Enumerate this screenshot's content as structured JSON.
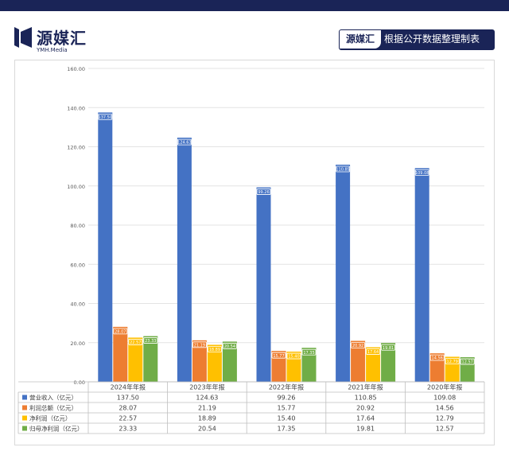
{
  "header": {
    "brand_name": "源媒汇",
    "brand_sub": "YMH.Media",
    "badge_brand": "源媒汇",
    "badge_text": "根据公开数据整理制表"
  },
  "colors": {
    "dark_navy": "#1a2457",
    "series": [
      "#4472c4",
      "#ed7d31",
      "#ffc000",
      "#70ad47"
    ]
  },
  "chart_data": {
    "type": "bar",
    "title": "",
    "xlabel": "",
    "ylabel": "",
    "ylim": [
      0,
      160
    ],
    "yticks": [
      "0.00",
      "20.00",
      "40.00",
      "60.00",
      "80.00",
      "100.00",
      "120.00",
      "140.00",
      "160.00"
    ],
    "categories": [
      "2024年年报",
      "2023年年报",
      "2022年年报",
      "2021年年报",
      "2020年年报"
    ],
    "series": [
      {
        "name": "营业收入（亿元）",
        "values": [
          137.5,
          124.63,
          99.26,
          110.85,
          109.08
        ],
        "labels": [
          "137.50",
          "124.63",
          "99.26",
          "110.85",
          "109.08"
        ]
      },
      {
        "name": "利润总额（亿元）",
        "values": [
          28.07,
          21.19,
          15.77,
          20.92,
          14.56
        ],
        "labels": [
          "28.07",
          "21.19",
          "15.77",
          "20.92",
          "14.56"
        ]
      },
      {
        "name": "净利润（亿元）",
        "values": [
          22.57,
          18.89,
          15.4,
          17.64,
          12.79
        ],
        "labels": [
          "22.57",
          "18.89",
          "15.40",
          "17.64",
          "12.79"
        ]
      },
      {
        "name": "归母净利润（亿元）",
        "values": [
          23.33,
          20.54,
          17.35,
          19.81,
          12.57
        ],
        "labels": [
          "23.33",
          "20.54",
          "17.35",
          "19.81",
          "12.57"
        ]
      }
    ],
    "legend": "table-bottom",
    "grid": true
  }
}
